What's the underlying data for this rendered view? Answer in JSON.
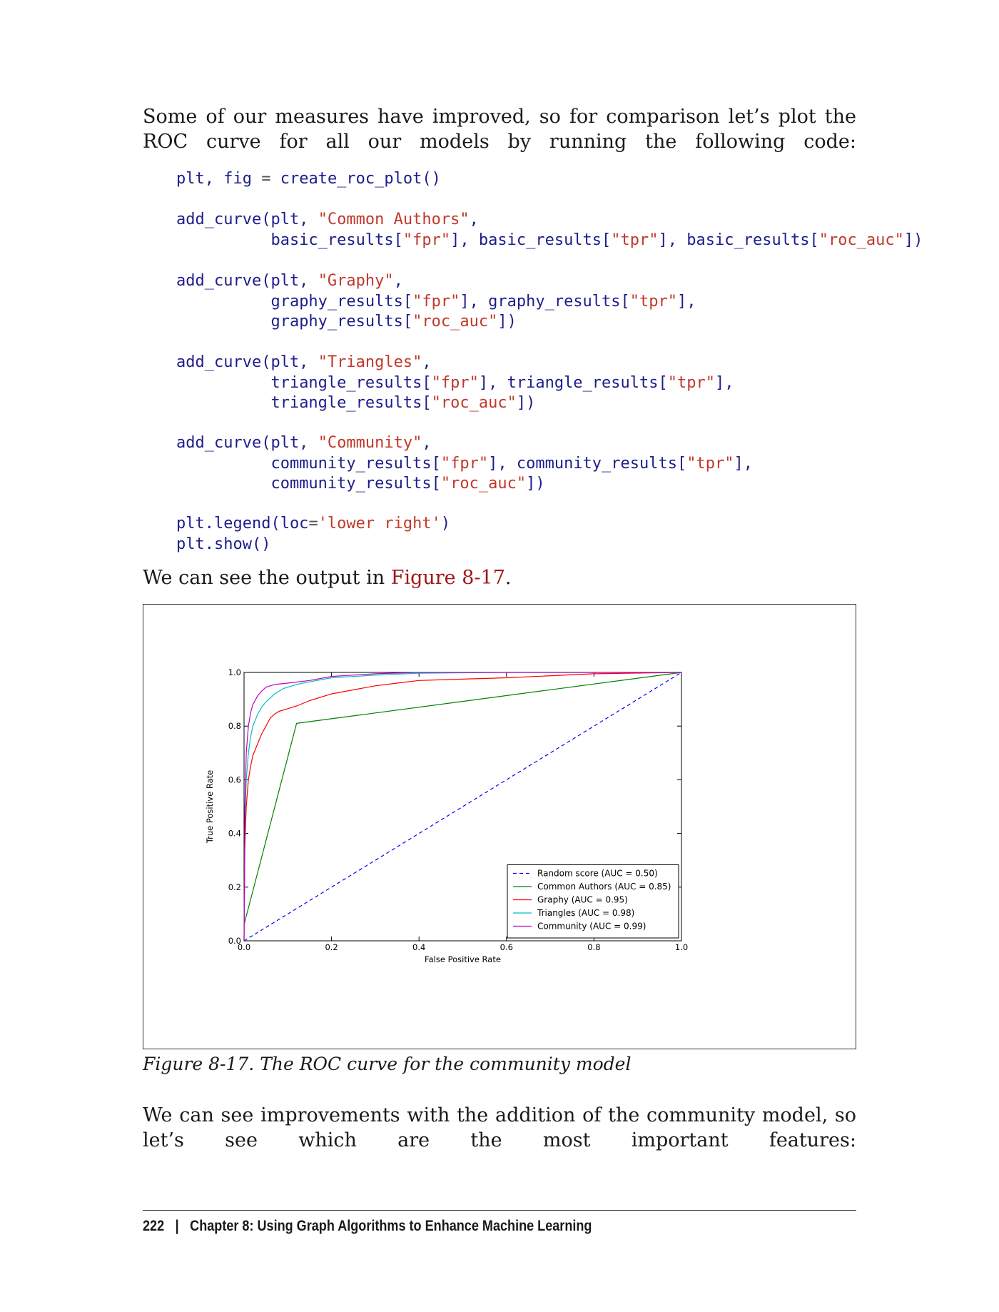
{
  "intro_text": "Some of our measures have improved, so for comparison let’s plot the ROC curve for all our models by running the following code:",
  "code": {
    "l1": {
      "a": "plt, fig ",
      "op": "=",
      "b": " create_roc_plot()"
    },
    "b1": {
      "head": "add_curve(plt, ",
      "name": "\"Common Authors\"",
      "tail": ",",
      "l2a": "basic_results[",
      "s1": "\"fpr\"",
      "l2b": "], basic_results[",
      "s2": "\"tpr\"",
      "l2c": "], basic_results[",
      "s3": "\"roc_auc\"",
      "l2d": "])"
    },
    "b2": {
      "head": "add_curve(plt, ",
      "name": "\"Graphy\"",
      "tail": ",",
      "l2a": "graphy_results[",
      "s1": "\"fpr\"",
      "l2b": "], graphy_results[",
      "s2": "\"tpr\"",
      "l2c": "],",
      "l3a": "graphy_results[",
      "s3": "\"roc_auc\"",
      "l3b": "])"
    },
    "b3": {
      "head": "add_curve(plt, ",
      "name": "\"Triangles\"",
      "tail": ",",
      "l2a": "triangle_results[",
      "s1": "\"fpr\"",
      "l2b": "], triangle_results[",
      "s2": "\"tpr\"",
      "l2c": "],",
      "l3a": "triangle_results[",
      "s3": "\"roc_auc\"",
      "l3b": "])"
    },
    "b4": {
      "head": "add_curve(plt, ",
      "name": "\"Community\"",
      "tail": ",",
      "l2a": "community_results[",
      "s1": "\"fpr\"",
      "l2b": "], community_results[",
      "s2": "\"tpr\"",
      "l2c": "],",
      "l3a": "community_results[",
      "s3": "\"roc_auc\"",
      "l3b": "])"
    },
    "legend": {
      "a": "plt.legend(loc",
      "op": "=",
      "s": "'lower right'",
      "b": ")"
    },
    "show": "plt.show()"
  },
  "output_text": {
    "before": "We can see the output in ",
    "link": "Figure 8-17",
    "after": "."
  },
  "caption": "Figure 8-17. The ROC curve for the community model",
  "after_text": "We can see improvements with the addition of the community model, so let’s see which are the most important features:",
  "footer": {
    "page": "222",
    "sep": "|",
    "chapter": "Chapter 8: Using Graph Algorithms to Enhance Machine Learning"
  },
  "chart_data": {
    "type": "line",
    "xlabel": "False Positive Rate",
    "ylabel": "True Positive Rate",
    "xlim": [
      0,
      1
    ],
    "ylim": [
      0,
      1
    ],
    "xticks": [
      "0.0",
      "0.2",
      "0.4",
      "0.6",
      "0.8",
      "1.0"
    ],
    "yticks": [
      "0.0",
      "0.2",
      "0.4",
      "0.6",
      "0.8",
      "1.0"
    ],
    "legend_position": "lower right",
    "grid": false,
    "series": [
      {
        "name": "Random score (AUC = 0.50)",
        "color": "#0000ff",
        "dash": true,
        "x": [
          0,
          1
        ],
        "y": [
          0,
          1
        ]
      },
      {
        "name": "Common Authors (AUC = 0.85)",
        "color": "#008000",
        "dash": false,
        "x": [
          0,
          0.12,
          1.0
        ],
        "y": [
          0.06,
          0.81,
          1.0
        ]
      },
      {
        "name": "Graphy (AUC = 0.95)",
        "color": "#ff0000",
        "dash": false,
        "x": [
          0,
          0.002,
          0.005,
          0.01,
          0.015,
          0.02,
          0.03,
          0.04,
          0.05,
          0.06,
          0.07,
          0.08,
          0.1,
          0.12,
          0.15,
          0.2,
          0.25,
          0.3,
          0.35,
          0.4,
          0.5,
          0.6,
          0.8,
          1.0
        ],
        "y": [
          0,
          0.35,
          0.5,
          0.6,
          0.65,
          0.69,
          0.73,
          0.77,
          0.8,
          0.83,
          0.845,
          0.855,
          0.865,
          0.875,
          0.895,
          0.92,
          0.935,
          0.95,
          0.96,
          0.97,
          0.975,
          0.98,
          0.995,
          1.0
        ]
      },
      {
        "name": "Triangles (AUC = 0.98)",
        "color": "#00bfbf",
        "dash": false,
        "x": [
          0,
          0.002,
          0.005,
          0.01,
          0.015,
          0.02,
          0.03,
          0.04,
          0.05,
          0.07,
          0.09,
          0.12,
          0.15,
          0.2,
          0.3,
          0.4,
          0.6,
          1.0
        ],
        "y": [
          0,
          0.45,
          0.6,
          0.7,
          0.76,
          0.8,
          0.84,
          0.87,
          0.89,
          0.92,
          0.94,
          0.955,
          0.965,
          0.98,
          0.99,
          0.997,
          1.0,
          1.0
        ]
      },
      {
        "name": "Community (AUC = 0.99)",
        "color": "#bf00bf",
        "dash": false,
        "x": [
          0,
          0.002,
          0.005,
          0.01,
          0.015,
          0.02,
          0.03,
          0.04,
          0.05,
          0.07,
          0.1,
          0.15,
          0.2,
          0.3,
          0.4,
          0.6,
          1.0
        ],
        "y": [
          0,
          0.5,
          0.7,
          0.8,
          0.85,
          0.88,
          0.91,
          0.93,
          0.945,
          0.955,
          0.96,
          0.97,
          0.985,
          0.995,
          1.0,
          1.0,
          1.0
        ]
      }
    ]
  }
}
